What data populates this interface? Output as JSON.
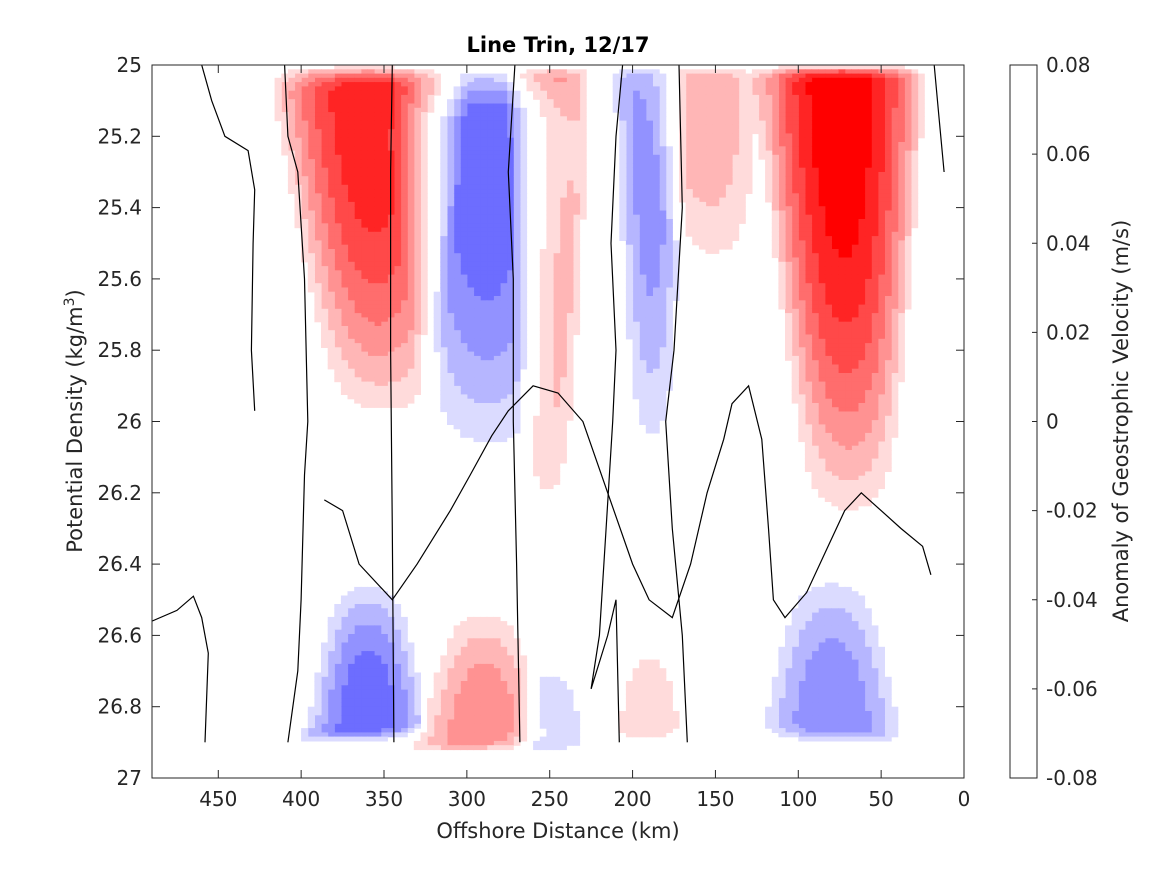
{
  "chart_data": {
    "type": "heatmap",
    "subtype": "filled-contour",
    "title": "Line Trin, 12/17",
    "xlabel": "Offshore Distance (km)",
    "ylabel": "Potential Density (kg/m",
    "ylabel_sup": "3",
    "ylabel_close": ")",
    "colorbar_label": "Anomaly of Geostrophic Velocity (m/s)",
    "x_reversed": true,
    "y_reversed": true,
    "xlim": [
      0,
      490
    ],
    "ylim": [
      25,
      27
    ],
    "xticks": [
      450,
      400,
      350,
      300,
      250,
      200,
      150,
      100,
      50,
      0
    ],
    "yticks": [
      "25",
      "25.2",
      "25.4",
      "25.6",
      "25.8",
      "26",
      "26.2",
      "26.4",
      "26.6",
      "26.8",
      "27"
    ],
    "clim": [
      -0.08,
      0.08
    ],
    "colorbar_ticks": [
      "0.08",
      "0.06",
      "0.04",
      "0.02",
      "0",
      "-0.02",
      "-0.04",
      "-0.06",
      "-0.08"
    ],
    "colorbar_levels": 16,
    "colormap": {
      "positive": "#ff0000",
      "zero": "#ffffff",
      "negative": "#0000ff"
    },
    "features": [
      {
        "name": "core-360km",
        "x": [
          293,
          408
        ],
        "y": [
          25,
          26.03
        ],
        "peak": 0.07,
        "center": [
          360,
          25.08
        ]
      },
      {
        "name": "core-290km",
        "x": [
          230,
          343
        ],
        "y": [
          25,
          26.15
        ],
        "peak": -0.05,
        "center": [
          290,
          25.2
        ]
      },
      {
        "name": "core-255km",
        "x": [
          228,
          275
        ],
        "y": [
          25,
          26.35
        ],
        "peak": 0.04,
        "center": [
          250,
          25.05
        ]
      },
      {
        "name": "core-190km",
        "x": [
          168,
          208
        ],
        "y": [
          25,
          26.17
        ],
        "peak": -0.04,
        "center": [
          190,
          25.05
        ]
      },
      {
        "name": "core-150km",
        "x": [
          110,
          188
        ],
        "y": [
          25,
          25.62
        ],
        "peak": 0.03,
        "center": [
          160,
          25.05
        ]
      },
      {
        "name": "core-80km",
        "x": [
          18,
          120
        ],
        "y": [
          25,
          26.32
        ],
        "peak": 0.08,
        "center": [
          75,
          25.05
        ]
      },
      {
        "name": "deep-360km",
        "x": [
          340,
          412
        ],
        "y": [
          26.42,
          26.9
        ],
        "peak": -0.05,
        "center": [
          360,
          26.85
        ]
      },
      {
        "name": "deep-300km",
        "x": [
          268,
          345
        ],
        "y": [
          26.5,
          26.9
        ],
        "peak": 0.04,
        "center": [
          290,
          26.88
        ]
      },
      {
        "name": "deep-250km",
        "x": [
          225,
          272
        ],
        "y": [
          26.65,
          26.9
        ],
        "peak": -0.02,
        "center": [
          250,
          26.88
        ]
      },
      {
        "name": "deep-190km",
        "x": [
          172,
          212
        ],
        "y": [
          26.6,
          26.9
        ],
        "peak": 0.02,
        "center": [
          190,
          26.85
        ]
      },
      {
        "name": "deep-60km",
        "x": [
          28,
          112
        ],
        "y": [
          26.4,
          26.9
        ],
        "peak": -0.04,
        "center": [
          80,
          26.85
        ]
      }
    ]
  }
}
